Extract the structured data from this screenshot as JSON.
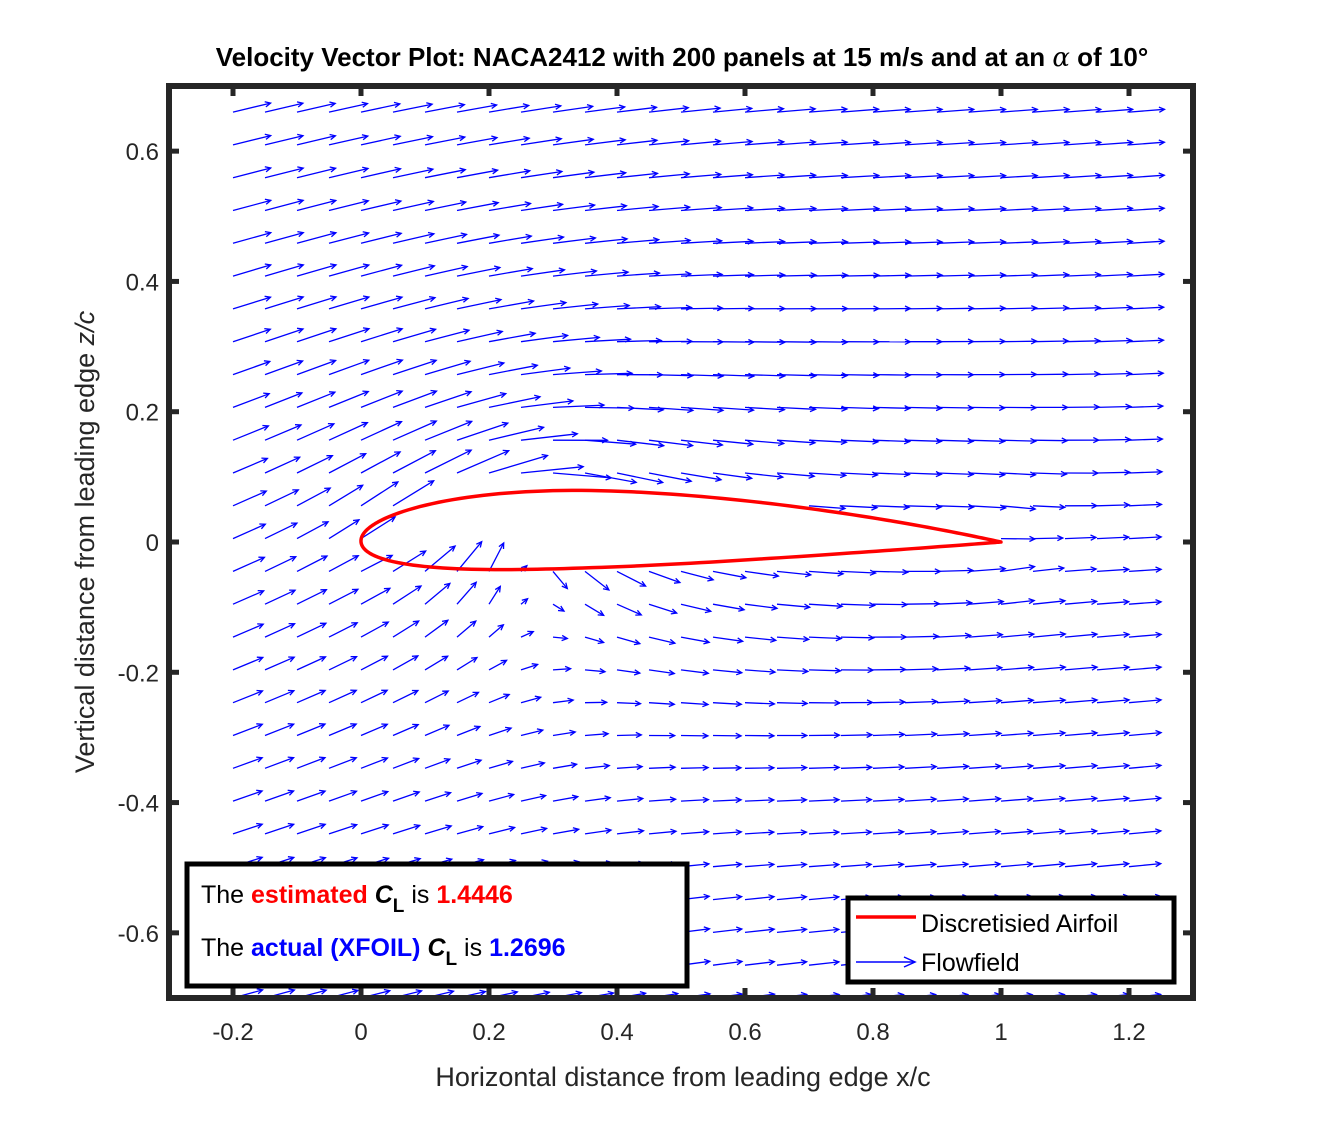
{
  "chart_data": {
    "type": "vector-field",
    "title": {
      "prefix": "Velocity Vector Plot: NACA2412 with 200 panels at 15 m/s and at an ",
      "symbol": "α",
      "suffix": " of 10°"
    },
    "xlabel": "Horizontal distance from leading edge x/c",
    "ylabel": {
      "main": "Vertical distance from leading edge ",
      "var": "z/c"
    },
    "xlim": [
      -0.3,
      1.3
    ],
    "ylim": [
      -0.7,
      0.7
    ],
    "xticks": [
      -0.2,
      0,
      0.2,
      0.4,
      0.6,
      0.8,
      1,
      1.2
    ],
    "xtick_labels": [
      "-0.2",
      "0",
      "0.2",
      "0.4",
      "0.6",
      "0.8",
      "1",
      "1.2"
    ],
    "yticks": [
      -0.6,
      -0.4,
      -0.2,
      0,
      0.2,
      0.4,
      0.6
    ],
    "ytick_labels": [
      "-0.6",
      "-0.4",
      "-0.2",
      "0",
      "0.2",
      "0.4",
      "0.6"
    ],
    "grid": false,
    "freestream": {
      "speed_mps": 15,
      "alpha_deg": 10
    },
    "airfoil": {
      "name": "NACA2412",
      "panels": 200,
      "color": "#ff0000"
    },
    "flowfield": {
      "color": "#0000ff",
      "x_range": [
        -0.2,
        1.2
      ],
      "nx": 15,
      "y_range": [
        -0.7,
        0.66
      ],
      "ny": 28
    },
    "legend": {
      "location": "bottom-right",
      "entries": [
        {
          "label": "Discretisied Airfoil",
          "color": "#ff0000",
          "marker": "line"
        },
        {
          "label": "Flowfield",
          "color": "#0000ff",
          "marker": "arrow"
        }
      ]
    },
    "annotation": {
      "location": "bottom-left",
      "line1": {
        "the": "The ",
        "key": "estimated ",
        "cl": "C",
        "sub": "L",
        "is": " is ",
        "value": "1.4446",
        "color": "#ff0000"
      },
      "line2": {
        "the": "The ",
        "key": "actual (XFOIL) ",
        "cl": "C",
        "sub": "L",
        "is": " is ",
        "value": "1.2696",
        "color": "#0000ff"
      }
    }
  }
}
